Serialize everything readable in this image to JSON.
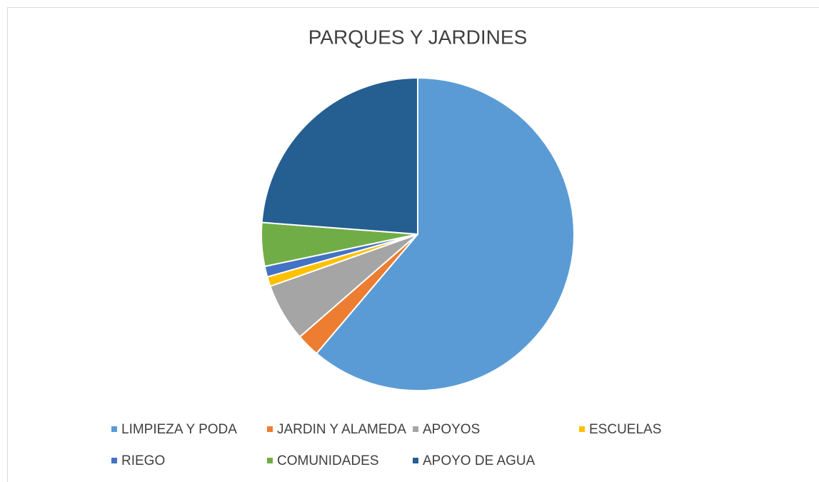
{
  "chart_data": {
    "type": "pie",
    "title": "PARQUES Y JARDINES",
    "categories": [
      "LIMPIEZA Y PODA",
      "JARDIN Y ALAMEDA",
      "APOYOS",
      "ESCUELAS",
      "RIEGO",
      "COMUNIDADES",
      "APOYO DE AGUA"
    ],
    "values": [
      61.2,
      2.4,
      6.0,
      1.0,
      1.1,
      4.5,
      23.8
    ],
    "colors": [
      "#5b9bd5",
      "#ed7d31",
      "#a5a5a5",
      "#ffc000",
      "#4472c4",
      "#70ad47",
      "#255e91"
    ],
    "legend": "bottom"
  }
}
